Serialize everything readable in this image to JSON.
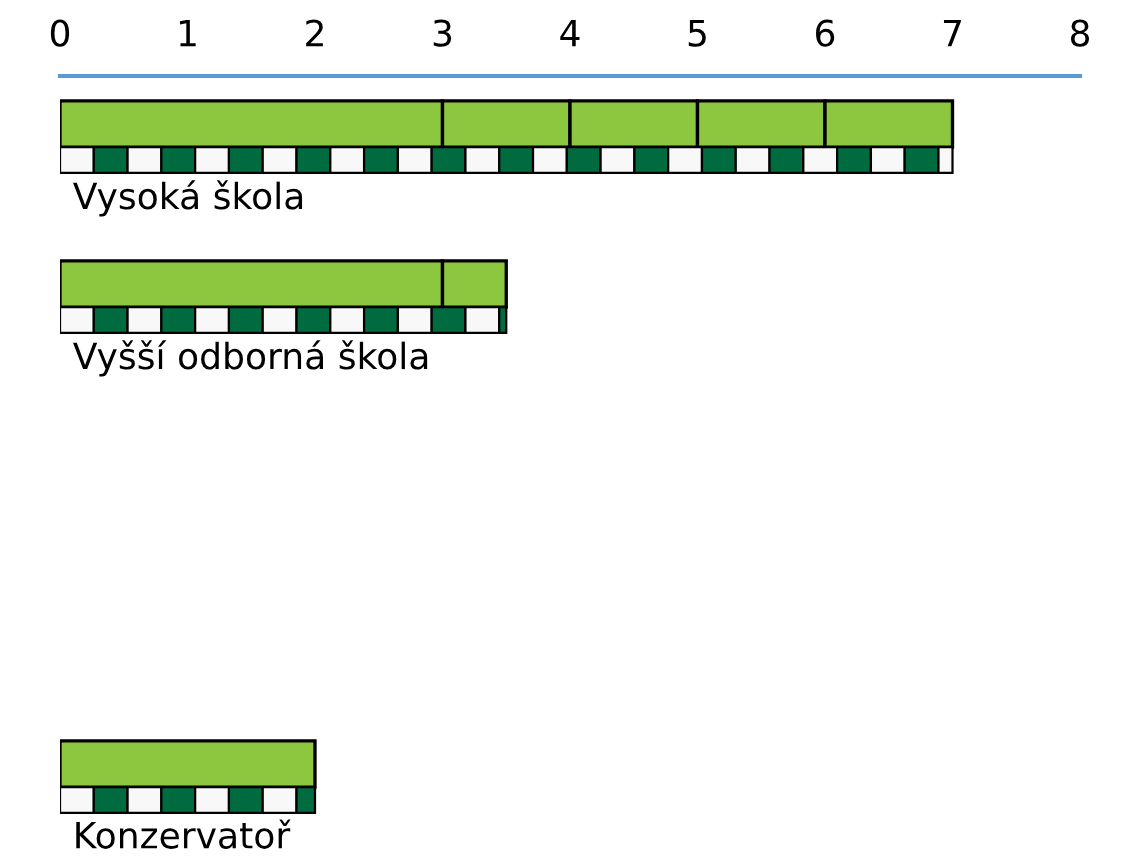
{
  "chart_data": {
    "type": "bar",
    "orientation": "horizontal",
    "stacked": true,
    "categories": [
      "Vysoká škola",
      "Vyšší odborná škola",
      null,
      null,
      "Konzervatoř"
    ],
    "series": [
      {
        "color": "#8dc63f",
        "values": [
          3,
          3,
          null,
          null,
          2
        ]
      },
      {
        "color": "#8dc63f",
        "values": [
          1,
          0.5,
          null,
          null,
          null
        ]
      },
      {
        "color": "#8dc63f",
        "values": [
          1,
          null,
          null,
          null,
          null
        ]
      },
      {
        "color": "#8dc63f",
        "values": [
          1,
          null,
          null,
          null,
          null
        ]
      },
      {
        "color": "#8dc63f",
        "values": [
          1,
          null,
          null,
          null,
          null
        ]
      }
    ],
    "xlim": [
      0,
      8
    ],
    "xticks": [
      0,
      1,
      2,
      3,
      4,
      5,
      6,
      7,
      8
    ],
    "grid": false,
    "legend": false
  }
}
